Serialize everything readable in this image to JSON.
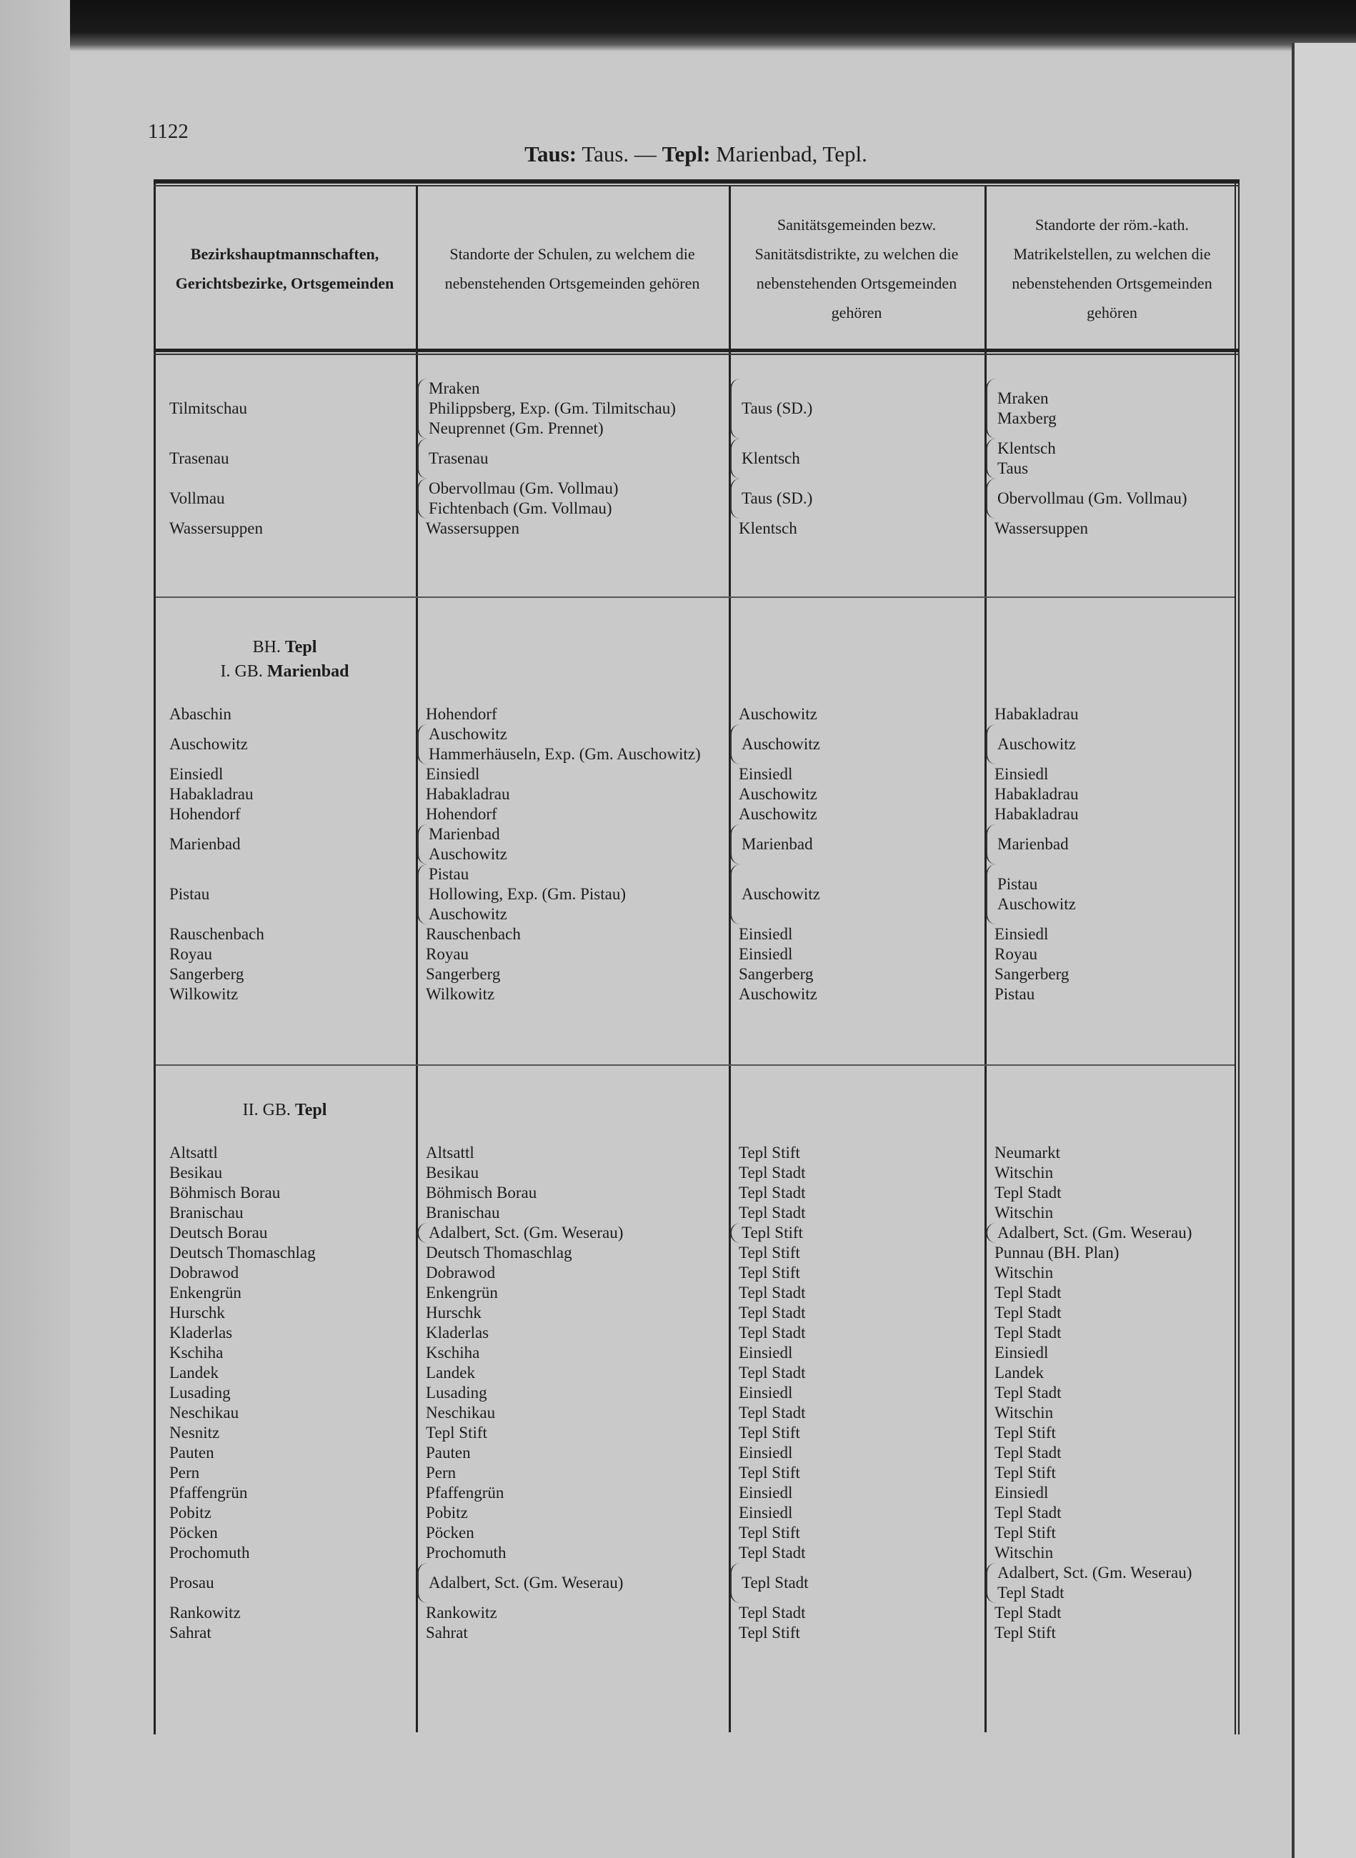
{
  "page_number": "1122",
  "running_head": {
    "part1_bold": "Taus:",
    "part1": " Taus. — ",
    "part2_bold": "Tepl:",
    "part2": " Marienbad, Tepl."
  },
  "headers": [
    "Bezirkshauptmannschaften, Gerichtsbezirke, Ortsgemeinden",
    "Standorte der Schulen, zu welchem die nebenstehenden Ortsgemeinden gehören",
    "Sanitätsgemeinden bezw. Sanitätsdistrikte, zu welchen die nebenstehenden Ortsgemeinden gehören",
    "Standorte der röm.-kath. Matrikelstellen, zu welchen die nebenstehenden Ortsgemeinden gehören"
  ],
  "sections": [
    {
      "headings": [],
      "rows": [
        {
          "gemeinde": "Tilmitschau",
          "schulen": [
            "Mraken",
            "Philippsberg, Exp. (Gm. Tilmitschau)",
            "Neuprennet (Gm. Prennet)"
          ],
          "sanitaet": [
            "Taus (SD.)"
          ],
          "matrikel": [
            "Mraken",
            "Maxberg"
          ]
        },
        {
          "gemeinde": "Trasenau",
          "schulen": [
            "Trasenau"
          ],
          "sanitaet": [
            "Klentsch"
          ],
          "matrikel": [
            "Klentsch",
            "Taus"
          ]
        },
        {
          "gemeinde": "Vollmau",
          "schulen": [
            "Obervollmau (Gm. Vollmau)",
            "Fichtenbach (Gm. Vollmau)"
          ],
          "sanitaet": [
            "Taus (SD.)"
          ],
          "matrikel": [
            "Obervollmau (Gm. Vollmau)"
          ]
        },
        {
          "gemeinde": "Wassersuppen",
          "schulen": [
            "Wassersuppen"
          ],
          "sanitaet": [
            "Klentsch"
          ],
          "matrikel": [
            "Wassersuppen"
          ]
        }
      ]
    },
    {
      "headings": [
        {
          "prefix": "BH. ",
          "bold": "Tepl"
        },
        {
          "prefix": "I. GB. ",
          "bold": "Marienbad"
        }
      ],
      "rows": [
        {
          "gemeinde": "Abaschin",
          "schulen": [
            "Hohendorf"
          ],
          "sanitaet": [
            "Auschowitz"
          ],
          "matrikel": [
            "Habakladrau"
          ]
        },
        {
          "gemeinde": "Auschowitz",
          "schulen": [
            "Auschowitz",
            "Hammerhäuseln, Exp. (Gm. Auschowitz)"
          ],
          "sanitaet": [
            "Auschowitz"
          ],
          "matrikel": [
            "Auschowitz"
          ]
        },
        {
          "gemeinde": "Einsiedl",
          "schulen": [
            "Einsiedl"
          ],
          "sanitaet": [
            "Einsiedl"
          ],
          "matrikel": [
            "Einsiedl"
          ]
        },
        {
          "gemeinde": "Habakladrau",
          "schulen": [
            "Habakladrau"
          ],
          "sanitaet": [
            "Auschowitz"
          ],
          "matrikel": [
            "Habakladrau"
          ]
        },
        {
          "gemeinde": "Hohendorf",
          "schulen": [
            "Hohendorf"
          ],
          "sanitaet": [
            "Auschowitz"
          ],
          "matrikel": [
            "Habakladrau"
          ]
        },
        {
          "gemeinde": "Marienbad",
          "schulen": [
            "Marienbad",
            "Auschowitz"
          ],
          "sanitaet": [
            "Marienbad"
          ],
          "matrikel": [
            "Marienbad"
          ]
        },
        {
          "gemeinde": "Pistau",
          "schulen": [
            "Pistau",
            "Hollowing, Exp. (Gm. Pistau)",
            "Auschowitz"
          ],
          "sanitaet": [
            "Auschowitz"
          ],
          "matrikel": [
            "Pistau",
            "Auschowitz"
          ]
        },
        {
          "gemeinde": "Rauschenbach",
          "schulen": [
            "Rauschenbach"
          ],
          "sanitaet": [
            "Einsiedl"
          ],
          "matrikel": [
            "Einsiedl"
          ]
        },
        {
          "gemeinde": "Royau",
          "schulen": [
            "Royau"
          ],
          "sanitaet": [
            "Einsiedl"
          ],
          "matrikel": [
            "Royau"
          ]
        },
        {
          "gemeinde": "Sangerberg",
          "schulen": [
            "Sangerberg"
          ],
          "sanitaet": [
            "Sangerberg"
          ],
          "matrikel": [
            "Sangerberg"
          ]
        },
        {
          "gemeinde": "Wilkowitz",
          "schulen": [
            "Wilkowitz"
          ],
          "sanitaet": [
            "Auschowitz"
          ],
          "matrikel": [
            "Pistau"
          ]
        }
      ]
    },
    {
      "headings": [
        {
          "prefix": "II. GB. ",
          "bold": "Tepl"
        }
      ],
      "rows": [
        {
          "gemeinde": "Altsattl",
          "schulen": [
            "Altsattl"
          ],
          "sanitaet": [
            "Tepl Stift"
          ],
          "matrikel": [
            "Neumarkt"
          ]
        },
        {
          "gemeinde": "Besikau",
          "schulen": [
            "Besikau"
          ],
          "sanitaet": [
            "Tepl Stadt"
          ],
          "matrikel": [
            "Witschin"
          ]
        },
        {
          "gemeinde": "Böhmisch Borau",
          "schulen": [
            "Böhmisch Borau"
          ],
          "sanitaet": [
            "Tepl Stadt"
          ],
          "matrikel": [
            "Tepl Stadt"
          ]
        },
        {
          "gemeinde": "Branischau",
          "schulen": [
            "Branischau"
          ],
          "sanitaet": [
            "Tepl Stadt"
          ],
          "matrikel": [
            "Witschin"
          ]
        },
        {
          "gemeinde": "Deutsch Borau",
          "schulen": [
            "Adalbert, Sct. (Gm. Weserau)"
          ],
          "sanitaet": [
            "Tepl Stift"
          ],
          "matrikel": [
            "Adalbert, Sct. (Gm. Weserau)"
          ]
        },
        {
          "gemeinde": "Deutsch Thomaschlag",
          "schulen": [
            "Deutsch Thomaschlag"
          ],
          "sanitaet": [
            "Tepl Stift"
          ],
          "matrikel": [
            "Punnau (BH. Plan)"
          ]
        },
        {
          "gemeinde": "Dobrawod",
          "schulen": [
            "Dobrawod"
          ],
          "sanitaet": [
            "Tepl Stift"
          ],
          "matrikel": [
            "Witschin"
          ]
        },
        {
          "gemeinde": "Enkengrün",
          "schulen": [
            "Enkengrün"
          ],
          "sanitaet": [
            "Tepl Stadt"
          ],
          "matrikel": [
            "Tepl Stadt"
          ]
        },
        {
          "gemeinde": "Hurschk",
          "schulen": [
            "Hurschk"
          ],
          "sanitaet": [
            "Tepl Stadt"
          ],
          "matrikel": [
            "Tepl Stadt"
          ]
        },
        {
          "gemeinde": "Kladerlas",
          "schulen": [
            "Kladerlas"
          ],
          "sanitaet": [
            "Tepl Stadt"
          ],
          "matrikel": [
            "Tepl Stadt"
          ]
        },
        {
          "gemeinde": "Kschiha",
          "schulen": [
            "Kschiha"
          ],
          "sanitaet": [
            "Einsiedl"
          ],
          "matrikel": [
            "Einsiedl"
          ]
        },
        {
          "gemeinde": "Landek",
          "schulen": [
            "Landek"
          ],
          "sanitaet": [
            "Tepl Stadt"
          ],
          "matrikel": [
            "Landek"
          ]
        },
        {
          "gemeinde": "Lusading",
          "schulen": [
            "Lusading"
          ],
          "sanitaet": [
            "Einsiedl"
          ],
          "matrikel": [
            "Tepl Stadt"
          ]
        },
        {
          "gemeinde": "Neschikau",
          "schulen": [
            "Neschikau"
          ],
          "sanitaet": [
            "Tepl Stadt"
          ],
          "matrikel": [
            "Witschin"
          ]
        },
        {
          "gemeinde": "Nesnitz",
          "schulen": [
            "Tepl Stift"
          ],
          "sanitaet": [
            "Tepl Stift"
          ],
          "matrikel": [
            "Tepl Stift"
          ]
        },
        {
          "gemeinde": "Pauten",
          "schulen": [
            "Pauten"
          ],
          "sanitaet": [
            "Einsiedl"
          ],
          "matrikel": [
            "Tepl Stadt"
          ]
        },
        {
          "gemeinde": "Pern",
          "schulen": [
            "Pern"
          ],
          "sanitaet": [
            "Tepl Stift"
          ],
          "matrikel": [
            "Tepl Stift"
          ]
        },
        {
          "gemeinde": "Pfaffengrün",
          "schulen": [
            "Pfaffengrün"
          ],
          "sanitaet": [
            "Einsiedl"
          ],
          "matrikel": [
            "Einsiedl"
          ]
        },
        {
          "gemeinde": "Pobitz",
          "schulen": [
            "Pobitz"
          ],
          "sanitaet": [
            "Einsiedl"
          ],
          "matrikel": [
            "Tepl Stadt"
          ]
        },
        {
          "gemeinde": "Pöcken",
          "schulen": [
            "Pöcken"
          ],
          "sanitaet": [
            "Tepl Stift"
          ],
          "matrikel": [
            "Tepl Stift"
          ]
        },
        {
          "gemeinde": "Prochomuth",
          "schulen": [
            "Prochomuth"
          ],
          "sanitaet": [
            "Tepl Stadt"
          ],
          "matrikel": [
            "Witschin"
          ]
        },
        {
          "gemeinde": "Prosau",
          "schulen": [
            "Adalbert, Sct. (Gm. Weserau)"
          ],
          "sanitaet": [
            "Tepl Stadt"
          ],
          "matrikel": [
            "Adalbert, Sct. (Gm. Weserau)",
            "Tepl Stadt"
          ]
        },
        {
          "gemeinde": "Rankowitz",
          "schulen": [
            "Rankowitz"
          ],
          "sanitaet": [
            "Tepl Stadt"
          ],
          "matrikel": [
            "Tepl Stadt"
          ]
        },
        {
          "gemeinde": "Sahrat",
          "schulen": [
            "Sahrat"
          ],
          "sanitaet": [
            "Tepl Stift"
          ],
          "matrikel": [
            "Tepl Stift"
          ]
        }
      ]
    }
  ]
}
